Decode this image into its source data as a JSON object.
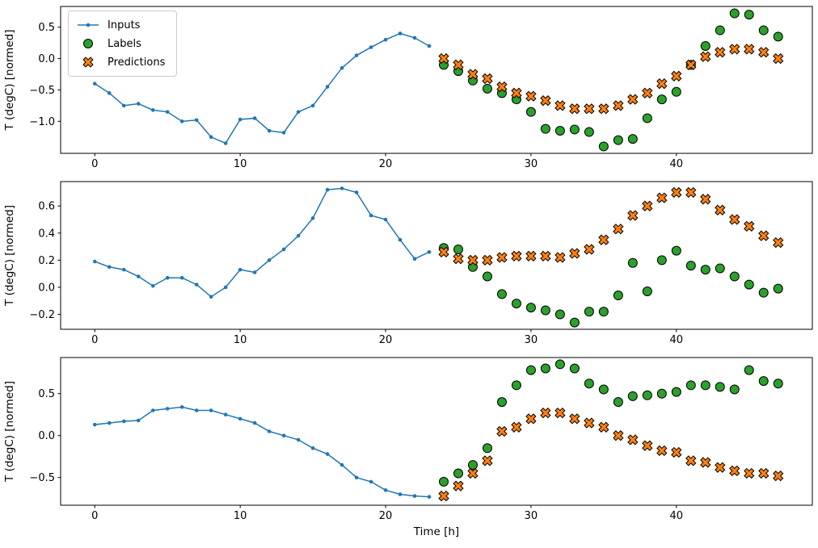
{
  "figure": {
    "xlabel": "Time [h]",
    "ylabel": "T (degC) [normed]",
    "background": "#ffffff",
    "legend": {
      "position": "upper-left",
      "entries": [
        {
          "label": "Inputs",
          "marker": "line-dot",
          "color": "#1f77b4"
        },
        {
          "label": "Labels",
          "marker": "circle",
          "color": "#2ca02c"
        },
        {
          "label": "Predictions",
          "marker": "X",
          "color": "#ff7f0e"
        }
      ]
    }
  },
  "chart_data": [
    {
      "type": "line",
      "title": "",
      "xlabel": "",
      "ylabel": "T (degC) [normed]",
      "xlim": [
        -2.35,
        49.35
      ],
      "ylim": [
        -1.51,
        0.83
      ],
      "xticks": [
        0,
        10,
        20,
        30,
        40
      ],
      "xtick_labels": [
        "0",
        "10",
        "20",
        "30",
        "40"
      ],
      "yticks": [
        0.5,
        0.0,
        -0.5,
        -1.0
      ],
      "ytick_labels": [
        "0.5",
        "0.0",
        "−0.5",
        "−1.0"
      ],
      "grid": false,
      "series": [
        {
          "name": "Inputs",
          "render": "line-dot",
          "color": "#1f77b4",
          "x": [
            0,
            1,
            2,
            3,
            4,
            5,
            6,
            7,
            8,
            9,
            10,
            11,
            12,
            13,
            14,
            15,
            16,
            17,
            18,
            19,
            20,
            21,
            22,
            23
          ],
          "values": [
            -0.4,
            -0.55,
            -0.75,
            -0.72,
            -0.82,
            -0.85,
            -1.0,
            -0.98,
            -1.25,
            -1.35,
            -0.97,
            -0.95,
            -1.15,
            -1.18,
            -0.85,
            -0.75,
            -0.45,
            -0.15,
            0.05,
            0.18,
            0.3,
            0.4,
            0.33,
            0.2
          ]
        },
        {
          "name": "Labels",
          "render": "circle",
          "color": "#2ca02c",
          "x": [
            24,
            25,
            26,
            27,
            28,
            29,
            30,
            31,
            32,
            33,
            34,
            35,
            36,
            37,
            38,
            39,
            40,
            41,
            42,
            43,
            44,
            45,
            46,
            47
          ],
          "values": [
            -0.1,
            -0.2,
            -0.35,
            -0.48,
            -0.55,
            -0.65,
            -0.85,
            -1.12,
            -1.15,
            -1.13,
            -1.17,
            -1.4,
            -1.3,
            -1.28,
            -0.95,
            -0.65,
            -0.53,
            -0.1,
            0.2,
            0.45,
            0.72,
            0.7,
            0.45,
            0.35
          ]
        },
        {
          "name": "Predictions",
          "render": "X",
          "color": "#ff7f0e",
          "x": [
            24,
            25,
            26,
            27,
            28,
            29,
            30,
            31,
            32,
            33,
            34,
            35,
            36,
            37,
            38,
            39,
            40,
            41,
            42,
            43,
            44,
            45,
            46,
            47
          ],
          "values": [
            0.0,
            -0.1,
            -0.25,
            -0.32,
            -0.45,
            -0.55,
            -0.6,
            -0.67,
            -0.75,
            -0.8,
            -0.8,
            -0.8,
            -0.75,
            -0.65,
            -0.55,
            -0.4,
            -0.28,
            -0.1,
            0.03,
            0.1,
            0.15,
            0.15,
            0.1,
            0.0
          ]
        }
      ]
    },
    {
      "type": "line",
      "title": "",
      "xlabel": "",
      "ylabel": "T (degC) [normed]",
      "xlim": [
        -2.35,
        49.35
      ],
      "ylim": [
        -0.31,
        0.78
      ],
      "xticks": [
        0,
        10,
        20,
        30,
        40
      ],
      "xtick_labels": [
        "0",
        "10",
        "20",
        "30",
        "40"
      ],
      "yticks": [
        0.6,
        0.4,
        0.2,
        0.0,
        -0.2
      ],
      "ytick_labels": [
        "0.6",
        "0.4",
        "0.2",
        "0.0",
        "−0.2"
      ],
      "grid": false,
      "series": [
        {
          "name": "Inputs",
          "render": "line-dot",
          "color": "#1f77b4",
          "x": [
            0,
            1,
            2,
            3,
            4,
            5,
            6,
            7,
            8,
            9,
            10,
            11,
            12,
            13,
            14,
            15,
            16,
            17,
            18,
            19,
            20,
            21,
            22,
            23
          ],
          "values": [
            0.19,
            0.15,
            0.13,
            0.08,
            0.01,
            0.07,
            0.07,
            0.02,
            -0.07,
            0.0,
            0.13,
            0.11,
            0.2,
            0.28,
            0.38,
            0.51,
            0.72,
            0.73,
            0.7,
            0.53,
            0.5,
            0.35,
            0.21,
            0.26
          ]
        },
        {
          "name": "Labels",
          "render": "circle",
          "color": "#2ca02c",
          "x": [
            24,
            25,
            26,
            27,
            28,
            29,
            30,
            31,
            32,
            33,
            34,
            35,
            36,
            37,
            38,
            39,
            40,
            41,
            42,
            43,
            44,
            45,
            46,
            47
          ],
          "values": [
            0.29,
            0.28,
            0.15,
            0.08,
            -0.05,
            -0.12,
            -0.15,
            -0.17,
            -0.2,
            -0.26,
            -0.18,
            -0.18,
            -0.06,
            0.18,
            -0.03,
            0.2,
            0.27,
            0.16,
            0.13,
            0.14,
            0.08,
            0.02,
            -0.04,
            -0.01
          ]
        },
        {
          "name": "Predictions",
          "render": "X",
          "color": "#ff7f0e",
          "x": [
            24,
            25,
            26,
            27,
            28,
            29,
            30,
            31,
            32,
            33,
            34,
            35,
            36,
            37,
            38,
            39,
            40,
            41,
            42,
            43,
            44,
            45,
            46,
            47
          ],
          "values": [
            0.26,
            0.21,
            0.2,
            0.2,
            0.22,
            0.23,
            0.23,
            0.23,
            0.22,
            0.25,
            0.28,
            0.35,
            0.43,
            0.53,
            0.6,
            0.66,
            0.7,
            0.7,
            0.65,
            0.57,
            0.5,
            0.45,
            0.38,
            0.33
          ]
        }
      ]
    },
    {
      "type": "line",
      "title": "",
      "xlabel": "Time [h]",
      "ylabel": "T (degC) [normed]",
      "xlim": [
        -2.35,
        49.35
      ],
      "ylim": [
        -0.83,
        0.93
      ],
      "xticks": [
        0,
        10,
        20,
        30,
        40
      ],
      "xtick_labels": [
        "0",
        "10",
        "20",
        "30",
        "40"
      ],
      "yticks": [
        0.5,
        0.0,
        -0.5
      ],
      "ytick_labels": [
        "0.5",
        "0.0",
        "−0.5"
      ],
      "grid": false,
      "series": [
        {
          "name": "Inputs",
          "render": "line-dot",
          "color": "#1f77b4",
          "x": [
            0,
            1,
            2,
            3,
            4,
            5,
            6,
            7,
            8,
            9,
            10,
            11,
            12,
            13,
            14,
            15,
            16,
            17,
            18,
            19,
            20,
            21,
            22,
            23
          ],
          "values": [
            0.13,
            0.15,
            0.17,
            0.18,
            0.3,
            0.32,
            0.34,
            0.3,
            0.3,
            0.25,
            0.2,
            0.15,
            0.05,
            0.0,
            -0.05,
            -0.15,
            -0.22,
            -0.35,
            -0.5,
            -0.55,
            -0.65,
            -0.7,
            -0.72,
            -0.73
          ]
        },
        {
          "name": "Labels",
          "render": "circle",
          "color": "#2ca02c",
          "x": [
            24,
            25,
            26,
            27,
            28,
            29,
            30,
            31,
            32,
            33,
            34,
            35,
            36,
            37,
            38,
            39,
            40,
            41,
            42,
            43,
            44,
            45,
            46,
            47
          ],
          "values": [
            -0.55,
            -0.45,
            -0.35,
            -0.15,
            0.4,
            0.6,
            0.78,
            0.8,
            0.85,
            0.8,
            0.62,
            0.55,
            0.4,
            0.47,
            0.48,
            0.5,
            0.52,
            0.6,
            0.6,
            0.58,
            0.55,
            0.78,
            0.65,
            0.62
          ]
        },
        {
          "name": "Predictions",
          "render": "X",
          "color": "#ff7f0e",
          "x": [
            24,
            25,
            26,
            27,
            28,
            29,
            30,
            31,
            32,
            33,
            34,
            35,
            36,
            37,
            38,
            39,
            40,
            41,
            42,
            43,
            44,
            45,
            46,
            47
          ],
          "values": [
            -0.72,
            -0.6,
            -0.45,
            -0.3,
            0.05,
            0.1,
            0.2,
            0.27,
            0.27,
            0.2,
            0.15,
            0.1,
            0.0,
            -0.05,
            -0.12,
            -0.18,
            -0.2,
            -0.3,
            -0.32,
            -0.38,
            -0.42,
            -0.45,
            -0.45,
            -0.48
          ]
        }
      ]
    }
  ]
}
